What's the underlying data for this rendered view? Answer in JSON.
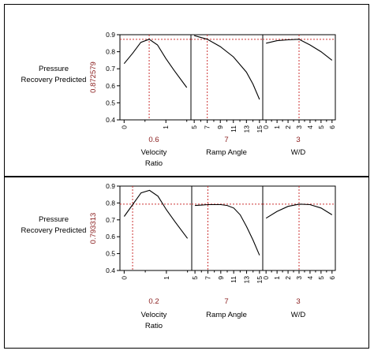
{
  "chart_data": [
    {
      "type": "line",
      "ylabel_lines": [
        "Pressure",
        "Recovery Predicted"
      ],
      "predicted_value": "0.872579",
      "ylim": [
        0.4,
        0.9
      ],
      "yticks": [
        "0.4",
        "0.5",
        "0.6",
        "0.7",
        "0.8",
        "0.9"
      ],
      "reference_y": 0.872579,
      "panels": [
        {
          "xlabel_lines": [
            "Velocity",
            "Ratio"
          ],
          "current_value": "0.6",
          "xlim": [
            -0.1,
            1.6
          ],
          "xticks": [
            "0",
            "1"
          ],
          "minor_ticks": [
            0.5,
            1.5
          ],
          "reference_x": 0.6,
          "x": [
            0,
            0.2,
            0.4,
            0.6,
            0.8,
            1.0,
            1.2,
            1.5
          ],
          "y": [
            0.73,
            0.79,
            0.855,
            0.873,
            0.84,
            0.76,
            0.69,
            0.59
          ]
        },
        {
          "xlabel_lines": [
            "Ramp Angle"
          ],
          "current_value": "7",
          "xlim": [
            4.5,
            15.5
          ],
          "xticks": [
            "5",
            "7",
            "9",
            "11",
            "13",
            "15"
          ],
          "minor_ticks": [
            6,
            8,
            10,
            12,
            14
          ],
          "reference_x": 7,
          "x": [
            5,
            7,
            9,
            11,
            13,
            14,
            15
          ],
          "y": [
            0.895,
            0.873,
            0.83,
            0.77,
            0.68,
            0.61,
            0.52
          ]
        },
        {
          "xlabel_lines": [
            "W/D"
          ],
          "current_value": "3",
          "xlim": [
            -0.3,
            6.3
          ],
          "xticks": [
            "0",
            "1",
            "2",
            "3",
            "4",
            "5",
            "6"
          ],
          "minor_ticks": [
            0.5,
            1.5,
            2.5,
            3.5,
            4.5,
            5.5
          ],
          "reference_x": 3,
          "x": [
            0,
            1,
            2,
            3,
            4,
            5,
            6
          ],
          "y": [
            0.85,
            0.865,
            0.87,
            0.873,
            0.84,
            0.8,
            0.75
          ]
        }
      ]
    },
    {
      "type": "line",
      "ylabel_lines": [
        "Pressure",
        "Recovery Predicted"
      ],
      "predicted_value": "0.793313",
      "ylim": [
        0.4,
        0.9
      ],
      "yticks": [
        "0.4",
        "0.5",
        "0.6",
        "0.7",
        "0.8",
        "0.9"
      ],
      "reference_y": 0.793313,
      "panels": [
        {
          "xlabel_lines": [
            "Velocity",
            "Ratio"
          ],
          "current_value": "0.2",
          "xlim": [
            -0.1,
            1.6
          ],
          "xticks": [
            "0",
            "1"
          ],
          "minor_ticks": [
            0.5,
            1.5
          ],
          "reference_x": 0.2,
          "x": [
            0,
            0.2,
            0.4,
            0.6,
            0.8,
            1.0,
            1.2,
            1.5
          ],
          "y": [
            0.72,
            0.79,
            0.86,
            0.875,
            0.84,
            0.76,
            0.69,
            0.59
          ]
        },
        {
          "xlabel_lines": [
            "Ramp Angle"
          ],
          "current_value": "7",
          "xlim": [
            4.5,
            15.5
          ],
          "xticks": [
            "5",
            "7",
            "9",
            "11",
            "13",
            "15"
          ],
          "minor_ticks": [
            6,
            8,
            10,
            12,
            14
          ],
          "reference_x": 7,
          "x": [
            5,
            7,
            9,
            10,
            11,
            12,
            13,
            14,
            15
          ],
          "y": [
            0.785,
            0.79,
            0.79,
            0.785,
            0.77,
            0.73,
            0.66,
            0.58,
            0.49
          ]
        },
        {
          "xlabel_lines": [
            "W/D"
          ],
          "current_value": "3",
          "xlim": [
            -0.3,
            6.3
          ],
          "xticks": [
            "0",
            "1",
            "2",
            "3",
            "4",
            "5",
            "6"
          ],
          "minor_ticks": [
            0.5,
            1.5,
            2.5,
            3.5,
            4.5,
            5.5
          ],
          "reference_x": 3,
          "x": [
            0,
            1,
            2,
            3,
            4,
            5,
            6
          ],
          "y": [
            0.71,
            0.75,
            0.78,
            0.793,
            0.79,
            0.77,
            0.73
          ]
        }
      ]
    }
  ],
  "colors": {
    "reference": "#cc3333",
    "value_text": "#8b2020",
    "line": "#000000"
  }
}
